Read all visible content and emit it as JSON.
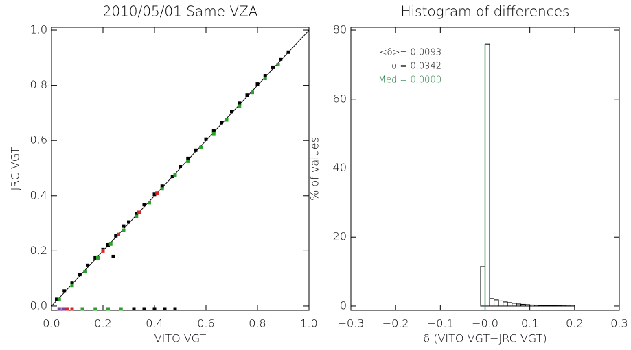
{
  "chart_data": [
    {
      "type": "scatter",
      "title": "2010/05/01 Same VZA",
      "x_label": "VITO VGT",
      "y_label": "JRC VGT",
      "xlim": [
        0,
        1
      ],
      "ylim": [
        -0.015,
        1.01
      ],
      "xticks": [
        {
          "value": 0,
          "label": "0.0"
        },
        0.2,
        0.4,
        0.6,
        0.8,
        {
          "value": 1,
          "label": "1.0"
        }
      ],
      "yticks": [
        {
          "value": 0,
          "label": "0.0"
        },
        0.2,
        0.4,
        0.6,
        0.8,
        {
          "value": 1,
          "label": "1.0"
        }
      ],
      "diagonal": true,
      "series": [
        {
          "color": "#000000",
          "x": [
            0.02,
            0.05,
            0.08,
            0.11,
            0.14,
            0.17,
            0.2,
            0.22,
            0.25,
            0.28,
            0.3,
            0.33,
            0.36,
            0.4,
            0.43,
            0.47,
            0.5,
            0.53,
            0.56,
            0.6,
            0.63,
            0.66,
            0.7,
            0.73,
            0.76,
            0.8,
            0.83,
            0.86,
            0.89,
            0.92,
            0.24,
            0.32,
            0.36,
            0.4,
            0.44,
            0.48
          ],
          "y": [
            0.025,
            0.055,
            0.085,
            0.115,
            0.148,
            0.175,
            0.205,
            0.222,
            0.255,
            0.29,
            0.305,
            0.335,
            0.368,
            0.405,
            0.435,
            0.47,
            0.505,
            0.535,
            0.565,
            0.605,
            0.635,
            0.665,
            0.705,
            0.735,
            0.765,
            0.805,
            0.835,
            0.865,
            0.895,
            0.92,
            0.18,
            -0.01,
            -0.01,
            -0.01,
            -0.01,
            -0.01
          ]
        },
        {
          "color": "#2ca02c",
          "x": [
            0.03,
            0.08,
            0.13,
            0.18,
            0.23,
            0.28,
            0.33,
            0.38,
            0.43,
            0.48,
            0.53,
            0.58,
            0.63,
            0.68,
            0.73,
            0.78,
            0.83,
            0.88,
            0.12,
            0.17,
            0.22,
            0.27
          ],
          "y": [
            0.025,
            0.075,
            0.125,
            0.175,
            0.225,
            0.275,
            0.325,
            0.375,
            0.425,
            0.475,
            0.525,
            0.575,
            0.625,
            0.675,
            0.725,
            0.775,
            0.825,
            0.875,
            -0.01,
            -0.01,
            -0.01,
            -0.01
          ]
        },
        {
          "color": "#d62728",
          "x": [
            0.2,
            0.26,
            0.34,
            0.41,
            0.06,
            0.08
          ],
          "y": [
            0.2,
            0.26,
            0.34,
            0.41,
            -0.01,
            -0.01
          ]
        },
        {
          "color": "#7b3fa0",
          "x": [
            0.03,
            0.045
          ],
          "y": [
            -0.01,
            -0.01
          ]
        }
      ]
    },
    {
      "type": "histogram",
      "title": "Histogram of differences",
      "x_label": "δ (VITO VGT−JRC VGT)",
      "y_label": "% of values",
      "xlim": [
        -0.3,
        0.3
      ],
      "ylim": [
        -1.2,
        80.8
      ],
      "xticks": [
        {
          "value": -0.3,
          "label": "−0.3"
        },
        {
          "value": -0.2,
          "label": "−0.2"
        },
        {
          "value": -0.1,
          "label": "−0.1"
        },
        {
          "value": 0,
          "label": "−0.0"
        },
        0.1,
        0.2,
        0.3
      ],
      "yticks": [
        0,
        20,
        40,
        60,
        80
      ],
      "color": "#000000",
      "bins": [
        -0.01,
        0,
        0.01,
        0.02,
        0.03,
        0.04,
        0.05,
        0.06,
        0.07,
        0.08,
        0.09,
        0.1,
        0.11,
        0.12,
        0.13,
        0.14,
        0.15,
        0.16,
        0.17,
        0.18,
        0.19,
        0.2
      ],
      "values": [
        11.5,
        76,
        2.2,
        1.8,
        1.5,
        1.2,
        1.0,
        0.8,
        0.6,
        0.5,
        0.4,
        0.3,
        0.25,
        0.2,
        0.15,
        0.12,
        0.1,
        0.08,
        0.06,
        0.04,
        0.02
      ],
      "median_line": {
        "value": 0,
        "color": "#1a7a3a"
      },
      "annotations": [
        {
          "text": "<δ>= 0.0093",
          "color": "#000000"
        },
        {
          "text": "σ = 0.0342",
          "color": "#000000"
        },
        {
          "text": "Med = 0.0000",
          "color": "#1a7a3a"
        }
      ]
    }
  ]
}
